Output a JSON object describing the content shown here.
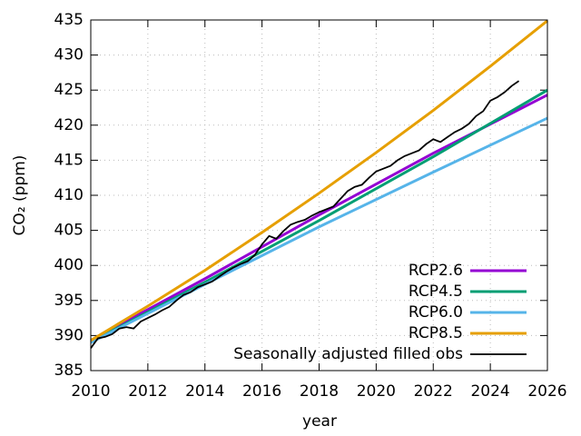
{
  "chart_data": {
    "type": "line",
    "x_label": "year",
    "y_label": "CO₂ (ppm)",
    "xlim": [
      2010,
      2026
    ],
    "ylim": [
      385,
      435
    ],
    "xticks": [
      2010,
      2012,
      2014,
      2016,
      2018,
      2020,
      2022,
      2024,
      2026
    ],
    "yticks": [
      385,
      390,
      395,
      400,
      405,
      410,
      415,
      420,
      425,
      430,
      435
    ],
    "grid": true,
    "legend": "bottom-right",
    "series": [
      {
        "name": "RCP2.6",
        "color": "#9400d3",
        "width": 3,
        "x": [
          2010,
          2014,
          2018,
          2022,
          2026
        ],
        "values": [
          389.3,
          398.1,
          407.2,
          416.0,
          424.3
        ]
      },
      {
        "name": "RCP4.5",
        "color": "#009e73",
        "width": 3,
        "x": [
          2010,
          2014,
          2018,
          2022,
          2026
        ],
        "values": [
          389.1,
          397.6,
          406.4,
          415.5,
          425.0
        ]
      },
      {
        "name": "RCP6.0",
        "color": "#56b4e9",
        "width": 3,
        "x": [
          2010,
          2014,
          2018,
          2022,
          2026
        ],
        "values": [
          389.0,
          397.3,
          405.5,
          413.3,
          421.0
        ]
      },
      {
        "name": "RCP8.5",
        "color": "#e69f00",
        "width": 3,
        "x": [
          2010,
          2012,
          2014,
          2016,
          2018,
          2020,
          2022,
          2024,
          2026
        ],
        "values": [
          389.3,
          394.2,
          399.3,
          404.7,
          410.3,
          416.1,
          422.1,
          428.4,
          434.9
        ]
      },
      {
        "name": "Seasonally adjusted filled obs",
        "color": "#000000",
        "width": 1.8,
        "x": [
          2010.0,
          2010.25,
          2010.5,
          2010.75,
          2011.0,
          2011.25,
          2011.5,
          2011.75,
          2012.0,
          2012.25,
          2012.5,
          2012.75,
          2013.0,
          2013.25,
          2013.5,
          2013.75,
          2014.0,
          2014.25,
          2014.5,
          2014.75,
          2015.0,
          2015.25,
          2015.5,
          2015.75,
          2016.0,
          2016.25,
          2016.5,
          2016.75,
          2017.0,
          2017.25,
          2017.5,
          2017.75,
          2018.0,
          2018.25,
          2018.5,
          2018.75,
          2019.0,
          2019.25,
          2019.5,
          2019.75,
          2020.0,
          2020.25,
          2020.5,
          2020.75,
          2021.0,
          2021.25,
          2021.5,
          2021.75,
          2022.0,
          2022.25,
          2022.5,
          2022.75,
          2023.0,
          2023.25,
          2023.5,
          2023.75,
          2024.0,
          2024.25,
          2024.5,
          2024.75,
          2025.0
        ],
        "values": [
          388.2,
          389.6,
          389.8,
          390.2,
          391.0,
          391.2,
          391.0,
          392.0,
          392.5,
          393.0,
          393.6,
          394.1,
          395.0,
          395.8,
          396.2,
          396.9,
          397.3,
          397.7,
          398.4,
          399.1,
          399.7,
          400.2,
          400.6,
          401.5,
          403.0,
          404.2,
          403.8,
          404.9,
          405.8,
          406.2,
          406.5,
          407.1,
          407.6,
          408.0,
          408.4,
          409.5,
          410.6,
          411.2,
          411.5,
          412.5,
          413.4,
          413.8,
          414.2,
          415.0,
          415.6,
          416.0,
          416.4,
          417.3,
          418.0,
          417.6,
          418.3,
          419.0,
          419.5,
          420.2,
          421.3,
          422.0,
          423.5,
          424.0,
          424.7,
          425.6,
          426.3
        ]
      }
    ]
  }
}
